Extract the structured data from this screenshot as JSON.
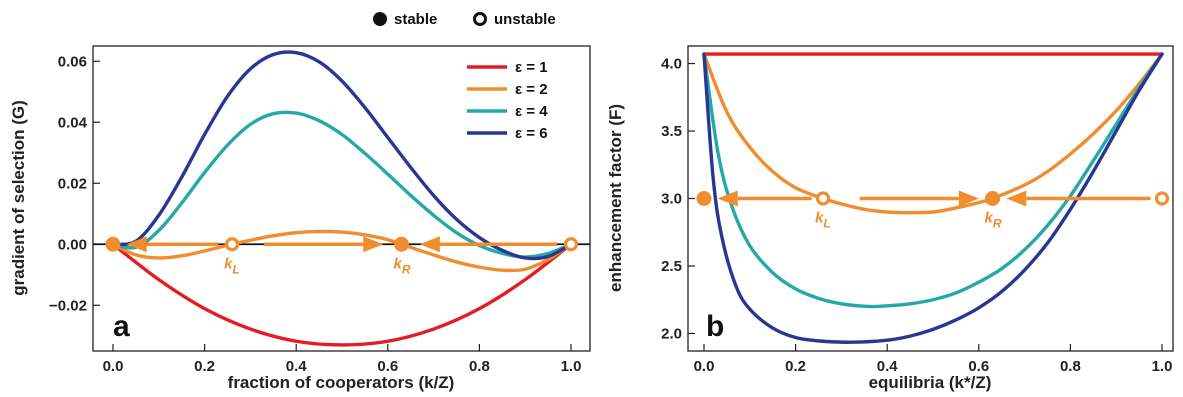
{
  "top_legend": {
    "stable": "stable",
    "unstable": "unstable"
  },
  "colors": {
    "eps1": "#e31d23",
    "eps2": "#f08d2e",
    "eps4": "#26a9a6",
    "eps6": "#283792",
    "axis": "#222222"
  },
  "chart_data": [
    {
      "panel_label": "a",
      "type": "line",
      "xlabel": "fraction of cooperators (k/Z)",
      "ylabel": "gradient of selection (G)",
      "xlim": [
        0,
        1
      ],
      "ylim": [
        -0.035,
        0.065
      ],
      "xticks": [
        "0.0",
        "0.2",
        "0.4",
        "0.6",
        "0.8",
        "1.0"
      ],
      "yticks": [
        "−0.02",
        "0.00",
        "0.02",
        "0.04",
        "0.06"
      ],
      "grid": false,
      "legend_position": "top-right",
      "series": [
        {
          "name": "ε = 1",
          "color": "#e31d23",
          "x": [
            0.0,
            0.1,
            0.2,
            0.3,
            0.4,
            0.5,
            0.6,
            0.7,
            0.8,
            0.9,
            1.0
          ],
          "y": [
            0.0,
            -0.0116,
            -0.0211,
            -0.0278,
            -0.0318,
            -0.033,
            -0.0318,
            -0.0278,
            -0.0211,
            -0.0116,
            0.0
          ]
        },
        {
          "name": "ε = 2",
          "color": "#f08d2e",
          "x": [
            0.0,
            0.05,
            0.1,
            0.15,
            0.2,
            0.26,
            0.3,
            0.35,
            0.4,
            0.45,
            0.5,
            0.55,
            0.6,
            0.63,
            0.7,
            0.75,
            0.8,
            0.85,
            0.9,
            0.95,
            1.0
          ],
          "y": [
            0.0,
            -0.0035,
            -0.0045,
            -0.0038,
            -0.0022,
            0.0,
            0.0013,
            0.0028,
            0.0038,
            0.0042,
            0.004,
            0.0031,
            0.0015,
            0.0,
            -0.0035,
            -0.0058,
            -0.0075,
            -0.0085,
            -0.0082,
            -0.005,
            0.0
          ]
        },
        {
          "name": "ε = 4",
          "color": "#26a9a6",
          "x": [
            0.0,
            0.05,
            0.1,
            0.15,
            0.2,
            0.25,
            0.3,
            0.35,
            0.4,
            0.45,
            0.5,
            0.55,
            0.6,
            0.65,
            0.7,
            0.75,
            0.8,
            0.85,
            0.9,
            0.95,
            1.0
          ],
          "y": [
            0.0,
            -0.001,
            0.0045,
            0.0135,
            0.0235,
            0.0325,
            0.0393,
            0.0428,
            0.043,
            0.0405,
            0.036,
            0.0298,
            0.023,
            0.016,
            0.0095,
            0.0038,
            -0.0004,
            -0.003,
            -0.0042,
            -0.003,
            0.0
          ]
        },
        {
          "name": "ε = 6",
          "color": "#283792",
          "x": [
            0.0,
            0.05,
            0.1,
            0.15,
            0.2,
            0.25,
            0.3,
            0.35,
            0.4,
            0.45,
            0.5,
            0.55,
            0.6,
            0.65,
            0.7,
            0.75,
            0.8,
            0.85,
            0.9,
            0.95,
            1.0
          ],
          "y": [
            0.0,
            0.001,
            0.0095,
            0.022,
            0.036,
            0.0485,
            0.0575,
            0.0622,
            0.0628,
            0.0598,
            0.0535,
            0.0448,
            0.035,
            0.0252,
            0.016,
            0.0082,
            0.0022,
            -0.002,
            -0.0045,
            -0.004,
            0.0
          ]
        }
      ],
      "equilibria": [
        {
          "x": 0.0,
          "stability": "stable"
        },
        {
          "x": 0.26,
          "stability": "unstable",
          "label": "k",
          "sub": "L"
        },
        {
          "x": 0.63,
          "stability": "stable",
          "label": "k",
          "sub": "R"
        },
        {
          "x": 1.0,
          "stability": "unstable"
        }
      ],
      "flow_arrows": [
        {
          "from": 0.23,
          "to": 0.03
        },
        {
          "from": 0.33,
          "to": 0.59
        },
        {
          "from": 0.97,
          "to": 0.67
        }
      ]
    },
    {
      "panel_label": "b",
      "type": "line",
      "xlabel": "equilibria (k*/Z)",
      "ylabel": "enhancement factor (F)",
      "xlim": [
        0,
        1
      ],
      "ylim": [
        1.87,
        4.13
      ],
      "xticks": [
        "0.0",
        "0.2",
        "0.4",
        "0.6",
        "0.8",
        "1.0"
      ],
      "yticks": [
        "2.0",
        "2.5",
        "3.0",
        "3.5",
        "4.0"
      ],
      "grid": false,
      "series": [
        {
          "name": "ε = 1",
          "color": "#e31d23",
          "x": [
            0.0,
            1.0
          ],
          "y": [
            4.07,
            4.07
          ]
        },
        {
          "name": "ε = 2",
          "color": "#f08d2e",
          "x": [
            0.0,
            0.05,
            0.1,
            0.15,
            0.2,
            0.26,
            0.3,
            0.35,
            0.4,
            0.44,
            0.5,
            0.55,
            0.6,
            0.63,
            0.7,
            0.75,
            0.8,
            0.85,
            0.9,
            0.95,
            1.0
          ],
          "y": [
            4.07,
            3.64,
            3.38,
            3.2,
            3.08,
            3.0,
            2.96,
            2.92,
            2.9,
            2.895,
            2.9,
            2.93,
            2.97,
            3.0,
            3.1,
            3.2,
            3.33,
            3.48,
            3.65,
            3.85,
            4.07
          ]
        },
        {
          "name": "ε = 4",
          "color": "#26a9a6",
          "x": [
            0.0,
            0.03,
            0.06,
            0.1,
            0.15,
            0.2,
            0.25,
            0.3,
            0.36,
            0.4,
            0.45,
            0.5,
            0.55,
            0.6,
            0.65,
            0.7,
            0.75,
            0.8,
            0.85,
            0.9,
            0.95,
            1.0
          ],
          "y": [
            4.07,
            3.35,
            2.95,
            2.65,
            2.45,
            2.33,
            2.26,
            2.22,
            2.2,
            2.205,
            2.22,
            2.25,
            2.3,
            2.38,
            2.48,
            2.62,
            2.8,
            3.02,
            3.28,
            3.55,
            3.82,
            4.07
          ]
        },
        {
          "name": "ε = 6",
          "color": "#283792",
          "x": [
            0.0,
            0.02,
            0.04,
            0.07,
            0.1,
            0.15,
            0.2,
            0.25,
            0.32,
            0.4,
            0.45,
            0.5,
            0.55,
            0.6,
            0.65,
            0.7,
            0.75,
            0.8,
            0.85,
            0.9,
            0.95,
            1.0
          ],
          "y": [
            4.07,
            3.15,
            2.7,
            2.35,
            2.18,
            2.04,
            1.97,
            1.945,
            1.935,
            1.95,
            1.98,
            2.03,
            2.1,
            2.19,
            2.31,
            2.47,
            2.67,
            2.92,
            3.2,
            3.5,
            3.8,
            4.07
          ]
        }
      ],
      "equilibria": [
        {
          "x": 0.0,
          "stability": "stable"
        },
        {
          "x": 0.26,
          "stability": "unstable",
          "label": "k",
          "sub": "L"
        },
        {
          "x": 0.63,
          "stability": "stable",
          "label": "k",
          "sub": "R"
        },
        {
          "x": 1.0,
          "stability": "unstable"
        }
      ],
      "flow_level": 3.0,
      "flow_arrows": [
        {
          "from": 0.235,
          "to": 0.03
        },
        {
          "from": 0.34,
          "to": 0.6
        },
        {
          "from": 0.975,
          "to": 0.66
        }
      ]
    }
  ]
}
